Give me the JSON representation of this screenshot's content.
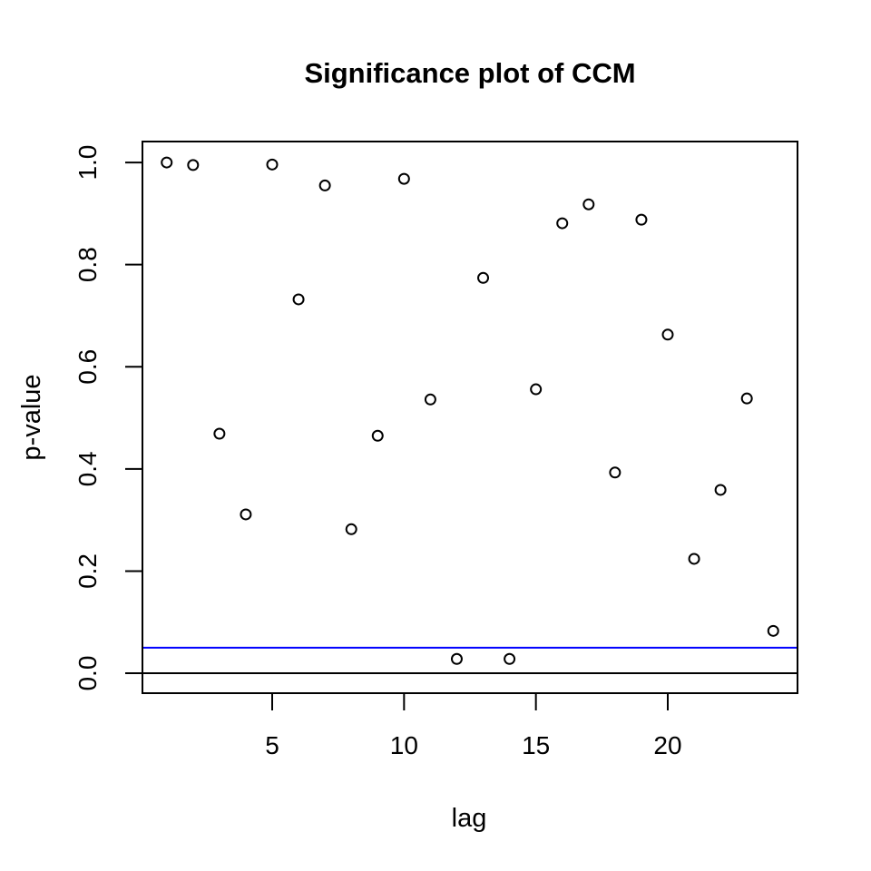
{
  "title": "Significance plot of CCM",
  "colors": {
    "background": "#ffffff",
    "foreground": "#000000",
    "significance_line": "#0000ff",
    "zero_line": "#000000",
    "point_stroke": "#000000"
  },
  "chart_data": {
    "type": "scatter",
    "title": "Significance plot of CCM",
    "xlabel": "lag",
    "ylabel": "p-value",
    "marker": "open-circle",
    "grid": false,
    "legend": null,
    "xlim": [
      0.08,
      24.92
    ],
    "ylim": [
      -0.039,
      1.041
    ],
    "x_ticks": [
      5,
      10,
      15,
      20
    ],
    "x_tick_labels": [
      "5",
      "10",
      "15",
      "20"
    ],
    "y_ticks": [
      0.0,
      0.2,
      0.4,
      0.6,
      0.8,
      1.0
    ],
    "y_tick_labels": [
      "0.0",
      "0.2",
      "0.4",
      "0.6",
      "0.8",
      "1.0"
    ],
    "x": [
      1,
      2,
      3,
      4,
      5,
      6,
      7,
      8,
      9,
      10,
      11,
      12,
      13,
      14,
      15,
      16,
      17,
      18,
      19,
      20,
      21,
      22,
      23,
      24
    ],
    "y": [
      1.0,
      0.995,
      0.469,
      0.311,
      0.996,
      0.732,
      0.955,
      0.282,
      0.465,
      0.968,
      0.536,
      0.028,
      0.774,
      0.028,
      0.556,
      0.881,
      0.918,
      0.393,
      0.888,
      0.663,
      0.224,
      0.359,
      0.538,
      0.083
    ],
    "hlines": [
      {
        "y": 0.05,
        "color": "#0000ff",
        "name": "significance-threshold-line"
      },
      {
        "y": 0.0,
        "color": "#000000",
        "name": "zero-line"
      }
    ]
  }
}
